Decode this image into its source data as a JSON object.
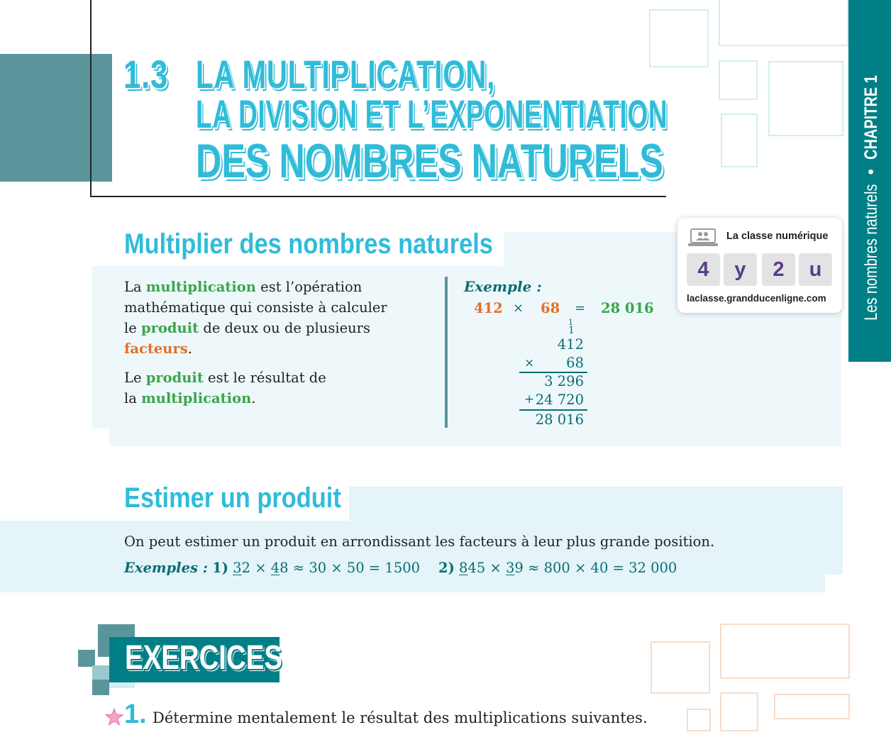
{
  "header": {
    "section_number": "1.3",
    "title_line1": "LA MULTIPLICATION,",
    "title_line2": "LA DIVISION ET L’EXPONENTIATION",
    "title_line3": "DES NOMBRES NATURELS"
  },
  "sidebar": {
    "chapter_label": "Les nombres naturels",
    "separator": "•",
    "chapter_number": "CHAPITRE 1"
  },
  "digital_card": {
    "title": "La classe numérique",
    "code": [
      "4",
      "y",
      "2",
      "u"
    ],
    "url": "laclasse.grandducenligne.com",
    "icon": "laptop-users-icon"
  },
  "section1": {
    "title": "Multiplier des nombres naturels",
    "p1": {
      "t1": "La ",
      "k1": "multiplication",
      "t2": " est l’opération mathématique qui consiste à calculer le ",
      "k2": "produit",
      "t3": " de deux ou de plusieurs ",
      "k3": "facteurs",
      "t4": "."
    },
    "p2": {
      "t1": "Le ",
      "k1": "produit",
      "t2": " est le résultat de la ",
      "k2": "multiplication",
      "t3": "."
    },
    "example_label": "Exemple :",
    "equation": {
      "a": "412",
      "times": "×",
      "b": "68",
      "eq": "=",
      "result": "28 016"
    },
    "calc": {
      "carry_top": "1",
      "carry_bottom": "1",
      "multiplicand": "412",
      "op_times": "×",
      "multiplier": "68",
      "partial1": "3 296",
      "op_plus": "+",
      "partial2": "24 720",
      "total": "28 016"
    }
  },
  "section2": {
    "title": "Estimer un produit",
    "text": "On peut estimer un produit en arrondissant les facteurs à leur plus grande position.",
    "examples_label": "Exemples :",
    "ex1": {
      "num": "1)",
      "a_first": "3",
      "a_rest": "2",
      "times1": "×",
      "b_first": "4",
      "b_rest": "8",
      "rest": "≈ 30 × 50 = 1500"
    },
    "ex2": {
      "num": "2)",
      "a_first": "8",
      "a_rest": "45",
      "times1": "×",
      "b_first": "3",
      "b_rest": "9",
      "rest": "≈ 800 × 40 = 32 000"
    }
  },
  "exercises": {
    "banner": "EXERCICES",
    "item_number": "1.",
    "item_text": "Détermine mentalement le résultat des multiplications suivantes."
  },
  "colors": {
    "title_cyan": "#2fbcd9",
    "sidebar_teal": "#007f86",
    "keyword_green": "#3aa64a",
    "keyword_orange": "#e4702a",
    "code_purple": "#5a3c8c"
  }
}
